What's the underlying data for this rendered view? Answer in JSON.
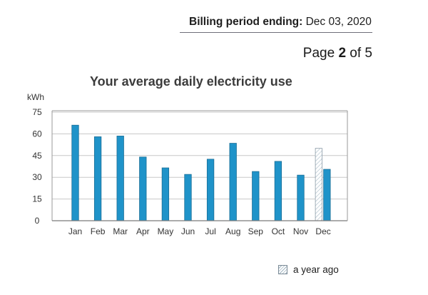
{
  "header": {
    "billing_label": "Billing period ending:",
    "billing_date": "Dec 03, 2020",
    "page_prefix": "Page",
    "page_current": "2",
    "page_of": "of 5"
  },
  "colors": {
    "bar": "#1f93c9",
    "bar_edge": "#1a6e96",
    "prior": "#a7bac7",
    "grid": "#c8c8c8"
  },
  "chart_data": {
    "type": "bar",
    "title": "Your average daily electricity use",
    "ylabel": "kWh",
    "xlabel": "",
    "categories": [
      "Jan",
      "Feb",
      "Mar",
      "Apr",
      "May",
      "Jun",
      "Jul",
      "Aug",
      "Sep",
      "Oct",
      "Nov",
      "Dec"
    ],
    "series": [
      {
        "values": [
          66,
          58,
          58.5,
          44,
          36.5,
          32,
          42.5,
          53.5,
          34,
          41,
          31.5,
          35.5
        ]
      },
      {
        "name": "a year ago",
        "values": [
          null,
          null,
          null,
          null,
          null,
          null,
          null,
          null,
          null,
          null,
          null,
          50
        ],
        "pattern": "hatched"
      }
    ],
    "yticks": [
      0,
      15,
      30,
      45,
      60,
      75
    ],
    "ylim": [
      0,
      75
    ],
    "grid": true,
    "legend": "bottom-right"
  }
}
